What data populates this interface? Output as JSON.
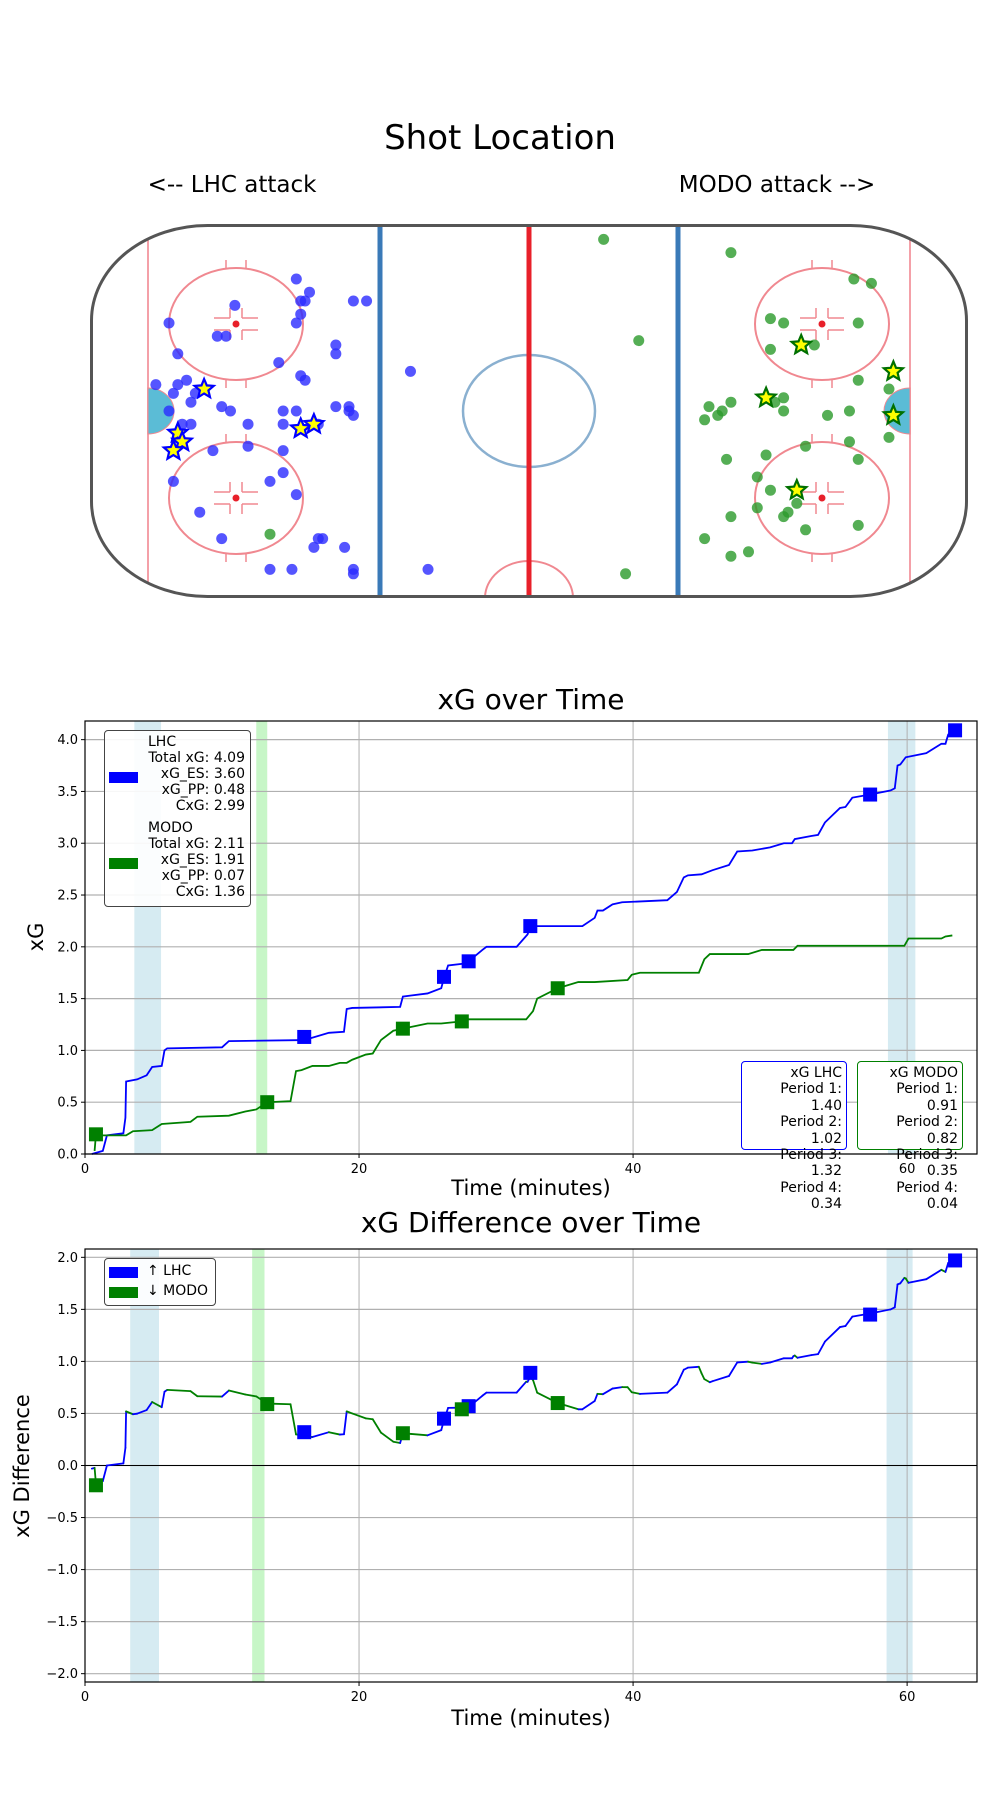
{
  "rink": {
    "title": "Shot Location",
    "left_label": "<-- LHC attack",
    "right_label": "MODO attack -->",
    "colors": {
      "LHC": "#1a1aff",
      "MODO": "#2a9a2a",
      "star_fill": "#ffff00"
    },
    "shots": {
      "LHC": [
        [
          -53,
          30
        ],
        [
          -50,
          27
        ],
        [
          -52,
          25
        ],
        [
          -51,
          25
        ],
        [
          -52,
          22
        ],
        [
          -40,
          25
        ],
        [
          -37,
          25
        ],
        [
          -67,
          24
        ],
        [
          -82,
          20
        ],
        [
          -53,
          20
        ],
        [
          -71,
          17
        ],
        [
          -69,
          17
        ],
        [
          -80,
          13
        ],
        [
          -44,
          15
        ],
        [
          -44,
          13
        ],
        [
          -57,
          11
        ],
        [
          -27,
          9
        ],
        [
          -52,
          8
        ],
        [
          -51,
          7
        ],
        [
          -85,
          6
        ],
        [
          -80,
          6
        ],
        [
          -78,
          7
        ],
        [
          -81,
          4
        ],
        [
          -76,
          4
        ],
        [
          -77,
          2
        ],
        [
          -70,
          1
        ],
        [
          -68,
          0
        ],
        [
          -82,
          0
        ],
        [
          -56,
          0
        ],
        [
          -53,
          0
        ],
        [
          -44,
          1
        ],
        [
          -41,
          1
        ],
        [
          -41,
          0
        ],
        [
          -40,
          -1
        ],
        [
          -79,
          -3
        ],
        [
          -77,
          -3
        ],
        [
          -64,
          -3
        ],
        [
          -56,
          -3
        ],
        [
          -48,
          -3
        ],
        [
          -64,
          -8
        ],
        [
          -72,
          -9
        ],
        [
          -56,
          -9
        ],
        [
          -56,
          -14
        ],
        [
          -81,
          -16
        ],
        [
          -59,
          -16
        ],
        [
          -53,
          -19
        ],
        [
          -75,
          -23
        ],
        [
          -70,
          -29
        ],
        [
          -48,
          -29
        ],
        [
          -47,
          -29
        ],
        [
          -49,
          -31
        ],
        [
          -42,
          -31
        ],
        [
          -59,
          -36
        ],
        [
          -54,
          -36
        ],
        [
          -40,
          -37
        ],
        [
          -40,
          -36
        ],
        [
          -23,
          -36
        ]
      ],
      "MODO": [
        [
          17,
          39
        ],
        [
          46,
          36
        ],
        [
          25,
          16
        ],
        [
          74,
          30
        ],
        [
          78,
          29
        ],
        [
          55,
          21
        ],
        [
          58,
          20
        ],
        [
          75,
          20
        ],
        [
          55,
          14
        ],
        [
          65,
          15
        ],
        [
          75,
          7
        ],
        [
          82,
          5
        ],
        [
          41,
          1
        ],
        [
          46,
          2
        ],
        [
          44,
          0
        ],
        [
          43,
          -1
        ],
        [
          40,
          -2
        ],
        [
          58,
          3
        ],
        [
          56,
          2
        ],
        [
          58,
          0
        ],
        [
          68,
          -1
        ],
        [
          73,
          0
        ],
        [
          82,
          -6
        ],
        [
          73,
          -7
        ],
        [
          63,
          -8
        ],
        [
          45,
          -11
        ],
        [
          54,
          -10
        ],
        [
          75,
          -11
        ],
        [
          52,
          -15
        ],
        [
          55,
          -18
        ],
        [
          52,
          -22
        ],
        [
          59,
          -23
        ],
        [
          58,
          -24
        ],
        [
          61,
          -21
        ],
        [
          46,
          -24
        ],
        [
          75,
          -26
        ],
        [
          63,
          -27
        ],
        [
          40,
          -29
        ],
        [
          50,
          -32
        ],
        [
          46,
          -33
        ],
        [
          22,
          -37
        ],
        [
          -59,
          -28
        ]
      ]
    },
    "goals": {
      "LHC": [
        [
          -74,
          5
        ],
        [
          -80,
          -5
        ],
        [
          -79,
          -7
        ],
        [
          -81,
          -9
        ],
        [
          -52,
          -4
        ],
        [
          -49,
          -3
        ]
      ],
      "MODO": [
        [
          62,
          15
        ],
        [
          83,
          9
        ],
        [
          54,
          3
        ],
        [
          83,
          -1
        ],
        [
          61,
          -18
        ]
      ]
    }
  },
  "chart_data": [
    {
      "type": "line",
      "title": "xG over Time",
      "xlabel": "Time (minutes)",
      "ylabel": "xG",
      "xlim": [
        0,
        65.1
      ],
      "ylim": [
        0,
        4.18
      ],
      "xticks": [
        0,
        20,
        40,
        60
      ],
      "yticks": [
        "0.0",
        "0.5",
        "1.0",
        "1.5",
        "2.0",
        "2.5",
        "3.0",
        "3.5",
        "4.0"
      ],
      "grid": true,
      "bands": [
        {
          "from": 3.6,
          "to": 5.55,
          "color": "#add8e6"
        },
        {
          "from": 12.5,
          "to": 13.3,
          "color": "#90ee90"
        },
        {
          "from": 58.6,
          "to": 60.6,
          "color": "#add8e6"
        }
      ],
      "series": [
        {
          "name": "LHC",
          "color": "#0000ff",
          "points": [
            [
              0.5,
              0
            ],
            [
              1.3,
              0.03
            ],
            [
              1.6,
              0.18
            ],
            [
              2.8,
              0.2
            ],
            [
              2.95,
              0.35
            ],
            [
              3.0,
              0.7
            ],
            [
              3.8,
              0.72
            ],
            [
              4.5,
              0.76
            ],
            [
              4.9,
              0.84
            ],
            [
              5.6,
              0.85
            ],
            [
              5.8,
              1.0
            ],
            [
              6.0,
              1.02
            ],
            [
              10.0,
              1.03
            ],
            [
              10.5,
              1.09
            ],
            [
              16.0,
              1.1
            ],
            [
              17.8,
              1.17
            ],
            [
              18.9,
              1.18
            ],
            [
              19.1,
              1.4
            ],
            [
              19.5,
              1.41
            ],
            [
              23.0,
              1.42
            ],
            [
              23.2,
              1.52
            ],
            [
              23.8,
              1.53
            ],
            [
              25.0,
              1.55
            ],
            [
              26.0,
              1.6
            ],
            [
              26.2,
              1.7
            ],
            [
              26.5,
              1.82
            ],
            [
              27.8,
              1.84
            ],
            [
              28.0,
              1.86
            ],
            [
              29.0,
              1.97
            ],
            [
              29.3,
              2.0
            ],
            [
              31.5,
              2.0
            ],
            [
              32.3,
              2.12
            ],
            [
              32.5,
              2.2
            ],
            [
              36.3,
              2.2
            ],
            [
              37.2,
              2.28
            ],
            [
              37.4,
              2.35
            ],
            [
              37.8,
              2.35
            ],
            [
              38.5,
              2.41
            ],
            [
              39.2,
              2.43
            ],
            [
              42.5,
              2.45
            ],
            [
              43.2,
              2.53
            ],
            [
              43.7,
              2.67
            ],
            [
              44.0,
              2.69
            ],
            [
              45.0,
              2.7
            ],
            [
              45.8,
              2.74
            ],
            [
              47.0,
              2.79
            ],
            [
              47.6,
              2.92
            ],
            [
              48.7,
              2.93
            ],
            [
              50.0,
              2.96
            ],
            [
              51.0,
              3.0
            ],
            [
              51.6,
              3.0
            ],
            [
              51.8,
              3.04
            ],
            [
              53.0,
              3.07
            ],
            [
              53.5,
              3.08
            ],
            [
              54.0,
              3.2
            ],
            [
              55.1,
              3.34
            ],
            [
              55.5,
              3.35
            ],
            [
              56.0,
              3.44
            ],
            [
              57.3,
              3.47
            ],
            [
              58.8,
              3.51
            ],
            [
              59.1,
              3.53
            ],
            [
              59.3,
              3.75
            ],
            [
              59.5,
              3.76
            ],
            [
              59.9,
              3.83
            ],
            [
              61.4,
              3.87
            ],
            [
              62.5,
              3.96
            ],
            [
              62.8,
              3.96
            ],
            [
              63.0,
              4.05
            ],
            [
              63.5,
              4.09
            ]
          ]
        },
        {
          "name": "MODO",
          "color": "#008000",
          "points": [
            [
              0.7,
              0.03
            ],
            [
              0.8,
              0.19
            ],
            [
              1.0,
              0.18
            ],
            [
              3.0,
              0.18
            ],
            [
              3.5,
              0.22
            ],
            [
              4.9,
              0.23
            ],
            [
              5.6,
              0.29
            ],
            [
              7.7,
              0.31
            ],
            [
              8.2,
              0.36
            ],
            [
              10.5,
              0.37
            ],
            [
              11.7,
              0.41
            ],
            [
              12.5,
              0.43
            ],
            [
              13.3,
              0.5
            ],
            [
              15.0,
              0.51
            ],
            [
              15.4,
              0.8
            ],
            [
              15.8,
              0.81
            ],
            [
              16.6,
              0.85
            ],
            [
              17.8,
              0.85
            ],
            [
              18.6,
              0.88
            ],
            [
              19.1,
              0.88
            ],
            [
              19.5,
              0.91
            ],
            [
              20.5,
              0.96
            ],
            [
              21.0,
              0.97
            ],
            [
              21.6,
              1.1
            ],
            [
              22.5,
              1.19
            ],
            [
              23.2,
              1.21
            ],
            [
              25.0,
              1.26
            ],
            [
              26.0,
              1.26
            ],
            [
              27.5,
              1.28
            ],
            [
              27.8,
              1.3
            ],
            [
              32.2,
              1.3
            ],
            [
              32.7,
              1.38
            ],
            [
              33.0,
              1.5
            ],
            [
              34.5,
              1.6
            ],
            [
              36.0,
              1.66
            ],
            [
              37.2,
              1.66
            ],
            [
              39.6,
              1.68
            ],
            [
              39.9,
              1.73
            ],
            [
              40.5,
              1.75
            ],
            [
              44.8,
              1.75
            ],
            [
              45.2,
              1.88
            ],
            [
              45.6,
              1.93
            ],
            [
              48.4,
              1.93
            ],
            [
              49.4,
              1.97
            ],
            [
              51.7,
              1.97
            ],
            [
              52.0,
              2.01
            ],
            [
              59.8,
              2.01
            ],
            [
              60.1,
              2.08
            ],
            [
              62.5,
              2.08
            ],
            [
              62.8,
              2.1
            ],
            [
              63.3,
              2.11
            ]
          ]
        }
      ],
      "goal_markers": {
        "LHC": [
          [
            16.0,
            1.13
          ],
          [
            26.2,
            1.71
          ],
          [
            28.0,
            1.86
          ],
          [
            32.5,
            2.2
          ],
          [
            57.3,
            3.47
          ],
          [
            63.5,
            4.09
          ]
        ],
        "MODO": [
          [
            0.8,
            0.19
          ],
          [
            13.3,
            0.5
          ],
          [
            23.2,
            1.21
          ],
          [
            27.5,
            1.28
          ],
          [
            34.5,
            1.6
          ]
        ]
      },
      "legend": {
        "LHC": {
          "name": "LHC",
          "total": "Total xG: 4.09",
          "es": "xG_ES: 3.60",
          "pp": "xG_PP: 0.48",
          "cxg": "CxG: 2.99"
        },
        "MODO": {
          "name": "MODO",
          "total": "Total xG: 2.11",
          "es": "xG_ES: 1.91",
          "pp": "xG_PP: 0.07",
          "cxg": "CxG: 1.36"
        }
      },
      "period_boxes": {
        "LHC": {
          "title": "xG LHC",
          "lines": [
            "Period 1: 1.40",
            "Period 2: 1.02",
            "Period 3: 1.32",
            "Period 4: 0.34"
          ]
        },
        "MODO": {
          "title": "xG MODO",
          "lines": [
            "Period 1: 0.91",
            "Period 2: 0.82",
            "Period 3: 0.35",
            "Period 4: 0.04"
          ]
        }
      }
    },
    {
      "type": "line",
      "title": "xG Difference over Time",
      "xlabel": "Time (minutes)",
      "ylabel": "xG Difference",
      "xlim": [
        0,
        65.1
      ],
      "ylim": [
        -2.08,
        2.08
      ],
      "xticks": [
        0,
        20,
        40,
        60
      ],
      "yticks": [
        "−2.0",
        "−1.5",
        "−1.0",
        "−0.5",
        "0.0",
        "0.5",
        "1.0",
        "1.5",
        "2.0"
      ],
      "ytick_values": [
        -2,
        -1.5,
        -1,
        -0.5,
        0,
        0.5,
        1,
        1.5,
        2
      ],
      "grid": true,
      "bands": [
        {
          "from": 3.3,
          "to": 5.4,
          "color": "#add8e6"
        },
        {
          "from": 12.2,
          "to": 13.1,
          "color": "#90ee90"
        },
        {
          "from": 58.5,
          "to": 60.4,
          "color": "#add8e6"
        }
      ],
      "derived_from": "LHC minus MODO",
      "goal_markers": {
        "LHC": [
          [
            16.0,
            0.32
          ],
          [
            26.2,
            0.45
          ],
          [
            28.0,
            0.57
          ],
          [
            32.5,
            0.89
          ],
          [
            57.3,
            1.45
          ],
          [
            63.5,
            1.97
          ]
        ],
        "MODO": [
          [
            0.8,
            -0.19
          ],
          [
            13.3,
            0.59
          ],
          [
            23.2,
            0.31
          ],
          [
            27.5,
            0.54
          ],
          [
            34.5,
            0.6
          ]
        ]
      },
      "legend": [
        {
          "label": "↑ LHC",
          "color": "#0000ff"
        },
        {
          "label": "↓ MODO",
          "color": "#008000"
        }
      ]
    }
  ]
}
